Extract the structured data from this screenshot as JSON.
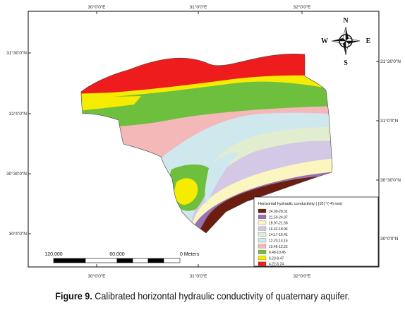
{
  "map": {
    "top_ticks": [
      "30°0'0\"E",
      "31°0'0\"E",
      "32°0'0\"E"
    ],
    "bottom_ticks": [
      "30°0'0\"E",
      "31°0'0\"E",
      "32°0'0\"E"
    ],
    "left_ticks": [
      "31°30'0\"N",
      "31°0'0\"N",
      "30°30'0\"N",
      "30°0'0\"N"
    ],
    "right_ticks": [
      "31°30'0\"N",
      "31°0'0\"N",
      "30°30'0\"N",
      "30°0'0\"N"
    ]
  },
  "compass": {
    "north": "N",
    "south": "S",
    "east": "E",
    "west": "W"
  },
  "scale_bar": {
    "labels": [
      "120,000",
      "60,000",
      "0 Meters"
    ]
  },
  "legend": {
    "title": "Horizontal hydraulic conductivity ( |10| ^(-4) m/s)",
    "items": [
      {
        "label": "24.99-28.31",
        "color": "#6b1e0f"
      },
      {
        "label": "21.59-24.97",
        "color": "#9a72b4"
      },
      {
        "label": "18.97-21.58",
        "color": "#fbf5c0"
      },
      {
        "label": "16.42-18.96",
        "color": "#d3c8e6"
      },
      {
        "label": "14.17-16.41",
        "color": "#e2edcf"
      },
      {
        "label": "12.23-14.16",
        "color": "#cfe8ee"
      },
      {
        "label": "10.46-12.22",
        "color": "#f5b8b8"
      },
      {
        "label": "8.48-10.45",
        "color": "#6fbf3f"
      },
      {
        "label": "6.23-8.47",
        "color": "#f6ec00"
      },
      {
        "label": "4.22-6.24",
        "color": "#ee1c1c"
      }
    ]
  },
  "caption": {
    "label": "Figure 9.",
    "text": " Calibrated horizontal hydraulic conductivity of quaternary aquifer."
  }
}
